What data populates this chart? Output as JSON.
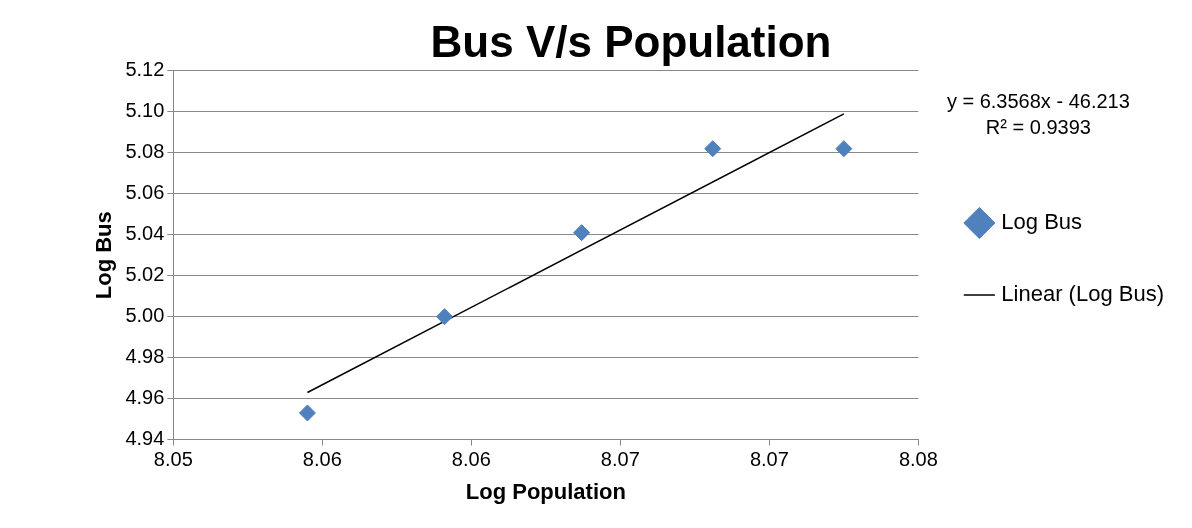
{
  "chart_data": {
    "type": "scatter",
    "title": "Bus V/s Population",
    "xlabel": "Log Population",
    "ylabel": "Log Bus",
    "x": [
      8.0545,
      8.0591,
      8.0637,
      8.0681,
      8.0725
    ],
    "series": [
      {
        "name": "Log Bus",
        "color": "#4f81bd",
        "values": [
          4.953,
          5.0,
          5.041,
          5.082,
          5.082
        ]
      },
      {
        "name": "Linear (Log Bus)",
        "type": "line",
        "marker": "none",
        "color": "#000000",
        "x": [
          8.0545,
          8.0725
        ],
        "values": [
          4.963,
          5.099
        ]
      }
    ],
    "xlim": [
      8.05,
      8.075
    ],
    "xticks": [
      {
        "value": 8.05,
        "label": "8.05"
      },
      {
        "value": 8.055,
        "label": "8.06"
      },
      {
        "value": 8.06,
        "label": "8.06"
      },
      {
        "value": 8.065,
        "label": "8.07"
      },
      {
        "value": 8.07,
        "label": "8.07"
      },
      {
        "value": 8.075,
        "label": "8.08"
      }
    ],
    "ylim": [
      4.94,
      5.12
    ],
    "yticks": [
      {
        "value": 4.94,
        "label": "4.94"
      },
      {
        "value": 4.96,
        "label": "4.96"
      },
      {
        "value": 4.98,
        "label": "4.98"
      },
      {
        "value": 5.0,
        "label": "5.00"
      },
      {
        "value": 5.02,
        "label": "5.02"
      },
      {
        "value": 5.04,
        "label": "5.04"
      },
      {
        "value": 5.06,
        "label": "5.06"
      },
      {
        "value": 5.08,
        "label": "5.08"
      },
      {
        "value": 5.1,
        "label": "5.10"
      },
      {
        "value": 5.12,
        "label": "5.12"
      }
    ],
    "annotations": [
      "y = 6.3568x - 46.213",
      "R² = 0.9393"
    ],
    "grid": "y",
    "legend": "right",
    "marker": "diamond"
  }
}
